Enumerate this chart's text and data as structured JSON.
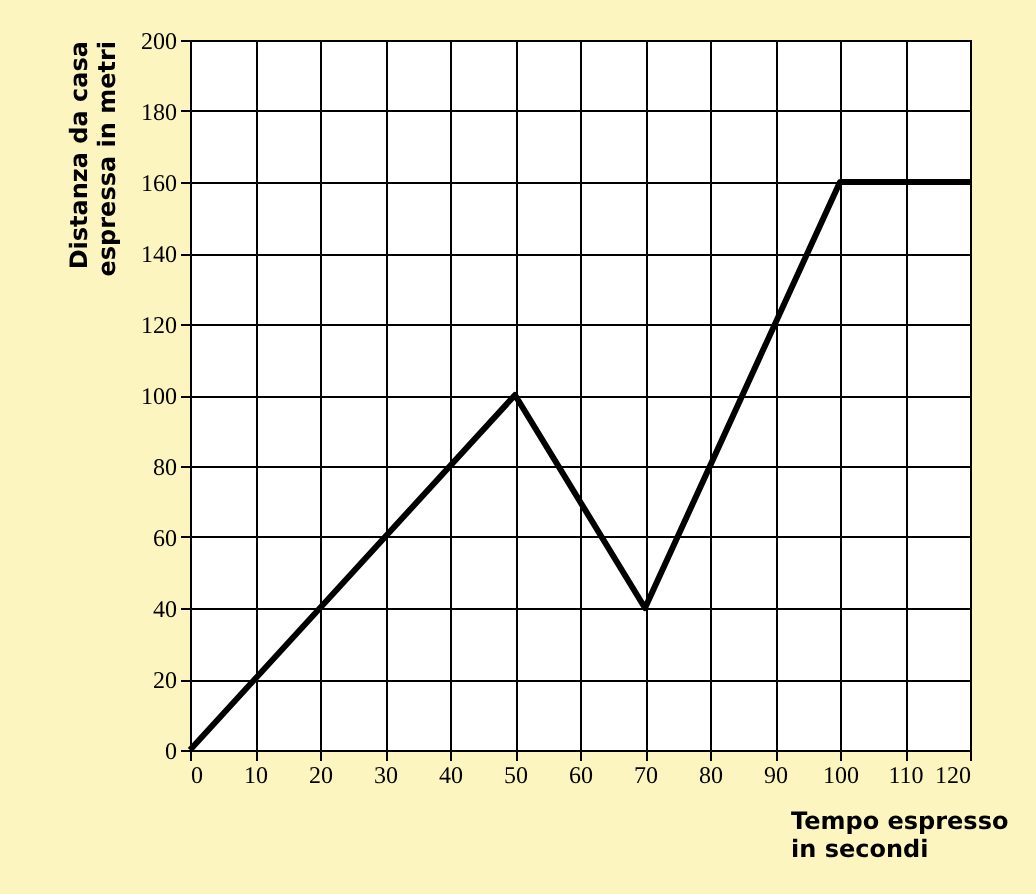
{
  "chart_data": {
    "type": "line",
    "xlabel": "Tempo espresso\nin secondi",
    "ylabel": "Distanza da casa\nespressa in metri",
    "x": [
      0,
      50,
      70,
      100,
      120
    ],
    "series": [
      {
        "color": "#000000",
        "values": [
          0,
          100,
          40,
          160,
          160
        ]
      }
    ],
    "xlim": [
      0,
      120
    ],
    "xticks": [
      0,
      10,
      20,
      30,
      40,
      50,
      60,
      70,
      80,
      90,
      100,
      110,
      120
    ],
    "ylim": [
      0,
      200
    ],
    "yticks": [
      0,
      20,
      40,
      60,
      80,
      100,
      120,
      140,
      160,
      180,
      200
    ],
    "grid": true,
    "marker": "none",
    "line_style": "solid"
  }
}
